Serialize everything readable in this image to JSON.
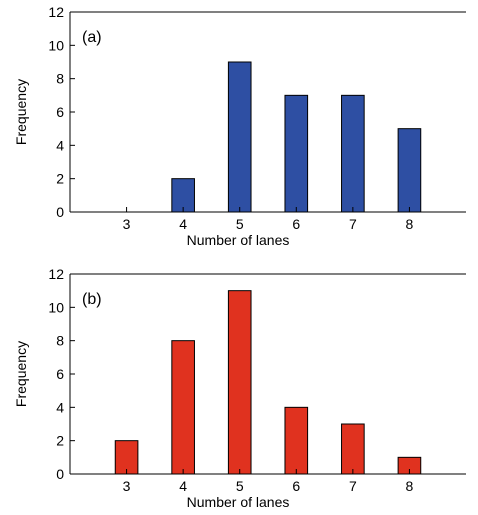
{
  "chart_data": [
    {
      "type": "bar",
      "panel_label": "(a)",
      "categories": [
        3,
        4,
        5,
        6,
        7,
        8
      ],
      "values": [
        0,
        2,
        9,
        7,
        7,
        5
      ],
      "xlabel": "Number of lanes",
      "ylabel": "Frequency",
      "ylim": [
        0,
        12
      ],
      "yticks": [
        0,
        2,
        4,
        6,
        8,
        10,
        12
      ],
      "xlim": [
        2,
        9
      ],
      "bar_color": "#2e4fa3",
      "grid": false
    },
    {
      "type": "bar",
      "panel_label": "(b)",
      "categories": [
        3,
        4,
        5,
        6,
        7,
        8
      ],
      "values": [
        2,
        8,
        11,
        4,
        3,
        1
      ],
      "xlabel": "Number of lanes",
      "ylabel": "Frequency",
      "ylim": [
        0,
        12
      ],
      "yticks": [
        0,
        2,
        4,
        6,
        8,
        10,
        12
      ],
      "xlim": [
        2,
        9
      ],
      "bar_color": "#e0321f",
      "grid": false
    }
  ]
}
